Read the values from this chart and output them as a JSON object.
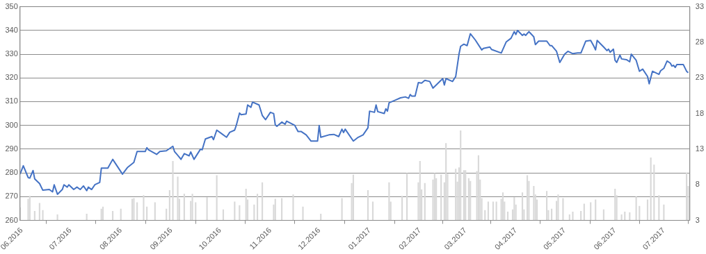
{
  "chart_data": {
    "type": "line",
    "xlim": [
      "2016-05-31",
      "2017-07-17"
    ],
    "xticks": [
      {
        "value": "2016-06-01",
        "label": "06.2016"
      },
      {
        "value": "2016-07-01",
        "label": "07.2016"
      },
      {
        "value": "2016-08-01",
        "label": "08.2016"
      },
      {
        "value": "2016-09-01",
        "label": "09.2016"
      },
      {
        "value": "2016-10-01",
        "label": "10.2016"
      },
      {
        "value": "2016-11-01",
        "label": "11.2016"
      },
      {
        "value": "2016-12-01",
        "label": "12.2016"
      },
      {
        "value": "2017-01-01",
        "label": "01.2017"
      },
      {
        "value": "2017-02-01",
        "label": "02.2017"
      },
      {
        "value": "2017-03-01",
        "label": "03.2017"
      },
      {
        "value": "2017-04-01",
        "label": "04.2017"
      },
      {
        "value": "2017-05-01",
        "label": "05.2017"
      },
      {
        "value": "2017-06-01",
        "label": "06.2017"
      },
      {
        "value": "2017-07-01",
        "label": "07.2017"
      }
    ],
    "ylim": [
      260,
      350
    ],
    "yticks": [
      260,
      270,
      280,
      290,
      300,
      310,
      320,
      330,
      340,
      350
    ],
    "y2lim": [
      3,
      33
    ],
    "y2ticks": [
      3,
      8,
      13,
      18,
      23,
      28,
      33
    ],
    "grid": "y",
    "legend": false,
    "marker": "none",
    "line_style": "solid",
    "series": [
      {
        "type": "bar",
        "axis": "y2",
        "color": "#d9d9d9",
        "x": [
          "2016-05-31",
          "2016-06-05",
          "2016-06-06",
          "2016-06-09",
          "2016-06-12",
          "2016-06-14",
          "2016-06-23",
          "2016-07-11",
          "2016-07-20",
          "2016-07-21",
          "2016-07-27",
          "2016-08-01",
          "2016-08-08",
          "2016-08-09",
          "2016-08-11",
          "2016-08-15",
          "2016-08-17",
          "2016-08-22",
          "2016-08-29",
          "2016-08-31",
          "2016-09-02",
          "2016-09-05",
          "2016-09-06",
          "2016-09-09",
          "2016-09-13",
          "2016-09-14",
          "2016-09-16",
          "2016-09-23",
          "2016-09-29",
          "2016-10-03",
          "2016-10-10",
          "2016-10-13",
          "2016-10-17",
          "2016-10-18",
          "2016-10-22",
          "2016-10-24",
          "2016-10-27",
          "2016-11-03",
          "2016-11-04",
          "2016-11-08",
          "2016-11-15",
          "2016-11-21",
          "2016-12-02",
          "2016-12-15",
          "2016-12-21",
          "2016-12-22",
          "2016-12-31",
          "2017-01-03",
          "2017-01-13",
          "2017-01-14",
          "2017-01-21",
          "2017-01-24",
          "2017-01-31",
          "2017-02-01",
          "2017-02-02",
          "2017-02-04",
          "2017-02-09",
          "2017-02-10",
          "2017-02-11",
          "2017-02-14",
          "2017-02-16",
          "2017-02-17",
          "2017-02-18",
          "2017-02-23",
          "2017-02-24",
          "2017-02-25",
          "2017-02-26",
          "2017-02-28",
          "2017-03-01",
          "2017-03-03",
          "2017-03-04",
          "2017-03-08",
          "2017-03-09",
          "2017-03-10",
          "2017-03-11",
          "2017-03-13",
          "2017-03-15",
          "2017-03-18",
          "2017-03-20",
          "2017-03-23",
          "2017-03-24",
          "2017-03-25",
          "2017-03-27",
          "2017-03-30",
          "2017-03-31",
          "2017-04-01",
          "2017-04-05",
          "2017-04-06",
          "2017-04-08",
          "2017-04-09",
          "2017-04-12",
          "2017-04-13",
          "2017-04-14",
          "2017-04-20",
          "2017-04-21",
          "2017-04-23",
          "2017-04-26",
          "2017-04-27",
          "2017-04-30",
          "2017-05-04",
          "2017-05-06",
          "2017-05-11",
          "2017-05-13",
          "2017-05-17",
          "2017-05-20",
          "2017-05-25",
          "2017-06-01",
          "2017-06-02",
          "2017-06-05",
          "2017-06-07",
          "2017-06-10",
          "2017-06-14",
          "2017-06-16",
          "2017-06-21",
          "2017-06-23",
          "2017-06-25",
          "2017-06-28",
          "2017-07-01",
          "2017-07-15",
          "2017-07-16"
        ],
        "values": [
          4.8,
          6.0,
          6.4,
          4.3,
          5.4,
          4.4,
          3.8,
          3.9,
          4.6,
          4.9,
          4.3,
          4.6,
          6.0,
          6.1,
          5.5,
          6.5,
          4.9,
          5.5,
          4.6,
          7.2,
          11.3,
          9.1,
          6.0,
          6.7,
          5.7,
          6.7,
          5.5,
          6.2,
          9.3,
          4.5,
          5.6,
          5.1,
          7.4,
          5.9,
          5.2,
          6.7,
          8.3,
          5.2,
          6.0,
          6.1,
          6.6,
          4.9,
          3.9,
          6.1,
          8.2,
          9.4,
          7.2,
          5.6,
          8.3,
          5.6,
          6.4,
          9.6,
          8.3,
          11.3,
          7.3,
          8.2,
          8.7,
          9.6,
          8.9,
          9.4,
          8.3,
          13.8,
          9.5,
          10.2,
          8.4,
          10.4,
          15.6,
          10.0,
          10.0,
          8.9,
          8.5,
          9.9,
          12.1,
          8.7,
          6.1,
          4.4,
          5.6,
          5.6,
          5.6,
          6.0,
          6.9,
          5.6,
          4.2,
          4.5,
          6.2,
          5.2,
          6.9,
          4.5,
          9.3,
          8.5,
          7.8,
          6.6,
          5.9,
          7.1,
          4.4,
          4.6,
          5.7,
          6.6,
          6.1,
          3.8,
          4.2,
          4.3,
          5.3,
          5.5,
          5.9,
          4.5,
          7.4,
          6.5,
          3.8,
          4.2,
          4.1,
          6.3,
          5.0,
          5.9,
          11.8,
          10.8,
          6.5,
          5.2,
          9.7,
          7.8
        ]
      },
      {
        "axis": "y",
        "color": "#4472c4",
        "x": [
          "2016-05-31",
          "2016-06-02",
          "2016-06-05",
          "2016-06-06",
          "2016-06-08",
          "2016-06-09",
          "2016-06-12",
          "2016-06-14",
          "2016-06-18",
          "2016-06-20",
          "2016-06-21",
          "2016-06-23",
          "2016-06-26",
          "2016-06-27",
          "2016-06-29",
          "2016-06-30",
          "2016-07-03",
          "2016-07-05",
          "2016-07-07",
          "2016-07-09",
          "2016-07-11",
          "2016-07-12",
          "2016-07-14",
          "2016-07-16",
          "2016-07-19",
          "2016-07-20",
          "2016-07-24",
          "2016-07-27",
          "2016-08-02",
          "2016-08-05",
          "2016-08-09",
          "2016-08-11",
          "2016-08-16",
          "2016-08-17",
          "2016-08-18",
          "2016-08-23",
          "2016-08-25",
          "2016-08-29",
          "2016-09-02",
          "2016-09-03",
          "2016-09-06",
          "2016-09-07",
          "2016-09-09",
          "2016-09-12",
          "2016-09-13",
          "2016-09-15",
          "2016-09-19",
          "2016-09-20",
          "2016-09-22",
          "2016-09-26",
          "2016-09-27",
          "2016-09-29",
          "2016-10-02",
          "2016-10-05",
          "2016-10-07",
          "2016-10-10",
          "2016-10-11",
          "2016-10-13",
          "2016-10-14",
          "2016-10-17",
          "2016-10-18",
          "2016-10-20",
          "2016-10-21",
          "2016-10-25",
          "2016-10-27",
          "2016-10-29",
          "2016-11-01",
          "2016-11-03",
          "2016-11-04",
          "2016-11-05",
          "2016-11-08",
          "2016-11-10",
          "2016-11-11",
          "2016-11-16",
          "2016-11-18",
          "2016-11-20",
          "2016-11-23",
          "2016-11-26",
          "2016-11-30",
          "2016-12-01",
          "2016-12-02",
          "2016-12-07",
          "2016-12-10",
          "2016-12-13",
          "2016-12-15",
          "2016-12-16",
          "2016-12-17",
          "2016-12-22",
          "2016-12-25",
          "2016-12-28",
          "2016-12-31",
          "2017-01-01",
          "2017-01-04",
          "2017-01-05",
          "2017-01-06",
          "2017-01-10",
          "2017-01-11",
          "2017-01-12",
          "2017-01-13",
          "2017-01-17",
          "2017-01-20",
          "2017-01-23",
          "2017-01-25",
          "2017-01-26",
          "2017-01-27",
          "2017-01-29",
          "2017-01-31",
          "2017-02-02",
          "2017-02-04",
          "2017-02-07",
          "2017-02-09",
          "2017-02-15",
          "2017-02-16",
          "2017-02-17",
          "2017-02-21",
          "2017-02-23",
          "2017-02-25",
          "2017-02-26",
          "2017-02-28",
          "2017-03-02",
          "2017-03-04",
          "2017-03-07",
          "2017-03-11",
          "2017-03-12",
          "2017-03-16",
          "2017-03-17",
          "2017-03-23",
          "2017-03-26",
          "2017-03-29",
          "2017-03-31",
          "2017-04-01",
          "2017-04-02",
          "2017-04-05",
          "2017-04-06",
          "2017-04-07",
          "2017-04-09",
          "2017-04-12",
          "2017-04-13",
          "2017-04-15",
          "2017-04-20",
          "2017-04-22",
          "2017-04-23",
          "2017-04-26",
          "2017-04-28",
          "2017-05-01",
          "2017-05-03",
          "2017-05-06",
          "2017-05-09",
          "2017-05-11",
          "2017-05-14",
          "2017-05-17",
          "2017-05-19",
          "2017-05-20",
          "2017-05-21",
          "2017-05-25",
          "2017-05-27",
          "2017-05-28",
          "2017-05-29",
          "2017-05-31",
          "2017-06-01",
          "2017-06-02",
          "2017-06-04",
          "2017-06-05",
          "2017-06-08",
          "2017-06-10",
          "2017-06-11",
          "2017-06-14",
          "2017-06-16",
          "2017-06-18",
          "2017-06-21",
          "2017-06-22",
          "2017-06-24",
          "2017-06-28",
          "2017-06-29",
          "2017-07-01",
          "2017-07-03",
          "2017-07-05",
          "2017-07-06",
          "2017-07-07",
          "2017-07-08",
          "2017-07-09",
          "2017-07-13",
          "2017-07-15",
          "2017-07-16"
        ],
        "values": [
          279.5,
          283,
          278,
          277.8,
          281,
          277.5,
          275.5,
          272.7,
          273,
          272,
          275,
          271,
          273,
          275,
          274,
          275,
          273,
          274,
          273,
          274.5,
          272.5,
          274,
          273,
          275,
          276,
          282,
          282,
          285.7,
          279.5,
          282.2,
          284.4,
          289,
          289,
          290.6,
          289.7,
          287.8,
          289,
          289.3,
          291.2,
          289,
          286.6,
          285.7,
          288.1,
          287.2,
          288.8,
          285.7,
          290,
          289.7,
          294.3,
          295.3,
          294,
          298,
          296.5,
          295,
          297.1,
          298,
          300,
          305.2,
          304.5,
          304.8,
          308.6,
          307.6,
          309.8,
          308.6,
          304.2,
          302.4,
          305.5,
          305,
          300.2,
          299.6,
          301.4,
          300.5,
          301.8,
          300,
          297.4,
          297.4,
          296,
          293.4,
          293.4,
          300,
          295,
          296,
          296.2,
          295.3,
          298.4,
          297,
          298.4,
          293.4,
          295,
          296,
          299,
          306,
          305.5,
          308.6,
          305.8,
          305,
          307,
          306,
          309.5,
          310.7,
          311.6,
          312,
          311.4,
          313,
          312.3,
          312.3,
          318,
          317.8,
          319,
          318.5,
          315.7,
          319.7,
          317,
          319.7,
          318.5,
          320.6,
          330,
          333.3,
          334.2,
          333.6,
          338.6,
          336,
          331.8,
          332.4,
          333,
          332,
          330.5,
          335.1,
          336.7,
          339.5,
          338.3,
          340,
          337.9,
          338.5,
          337.9,
          339.5,
          337.3,
          334,
          335.5,
          335.5,
          333.6,
          333.6,
          331.2,
          326.5,
          330,
          331.2,
          330.2,
          330.5,
          330.5,
          335.5,
          335.8,
          333.3,
          331.8,
          335.8,
          333,
          331.5,
          332.1,
          330.8,
          332.1,
          327.4,
          326.5,
          329.6,
          328,
          327.7,
          326.8,
          330,
          327.4,
          322.8,
          323.7,
          320.6,
          317.5,
          322.8,
          321.5,
          323,
          324,
          327.1,
          326.2,
          325,
          325.3,
          324.4,
          325.6,
          325.6,
          322.8,
          322.2
        ]
      }
    ]
  }
}
